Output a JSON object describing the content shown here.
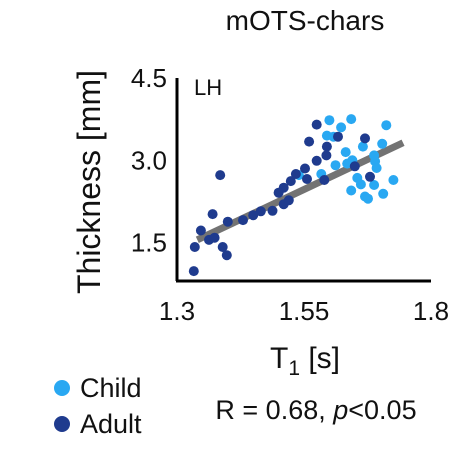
{
  "chart_data": {
    "type": "scatter",
    "title": "mOTS-chars",
    "panel_label": "LH",
    "xlabel": "T",
    "xlabel_sub": "1",
    "xlabel_unit": " [s]",
    "ylabel": "Thickness [mm]",
    "xlim": [
      1.3,
      1.8
    ],
    "ylim": [
      0.8,
      4.5
    ],
    "x_ticks": [
      1.3,
      1.55,
      1.8
    ],
    "x_tick_labels": [
      "1.3",
      "1.55",
      "1.8"
    ],
    "y_ticks": [
      1.5,
      3.0,
      4.5
    ],
    "y_tick_labels": [
      "1.5",
      "3.0",
      "4.5"
    ],
    "grid": false,
    "legend_position": "bottom-left",
    "series": [
      {
        "name": "Child",
        "color": "#29a8f2",
        "points": [
          [
            1.6,
            3.73
          ],
          [
            1.623,
            3.6
          ],
          [
            1.643,
            3.75
          ],
          [
            1.712,
            3.64
          ],
          [
            1.595,
            3.45
          ],
          [
            1.608,
            3.43
          ],
          [
            1.632,
            3.15
          ],
          [
            1.666,
            3.25
          ],
          [
            1.688,
            3.09
          ],
          [
            1.704,
            3.3
          ],
          [
            1.54,
            2.73
          ],
          [
            1.584,
            2.75
          ],
          [
            1.612,
            2.91
          ],
          [
            1.635,
            2.94
          ],
          [
            1.645,
            3.0
          ],
          [
            1.69,
            2.98
          ],
          [
            1.693,
            2.86
          ],
          [
            1.655,
            2.68
          ],
          [
            1.662,
            2.56
          ],
          [
            1.726,
            2.64
          ],
          [
            1.643,
            2.45
          ],
          [
            1.67,
            2.34
          ],
          [
            1.676,
            2.3
          ],
          [
            1.706,
            2.39
          ],
          [
            1.688,
            2.55
          ]
        ]
      },
      {
        "name": "Adult",
        "color": "#1f3b8e",
        "points": [
          [
            1.575,
            3.65
          ],
          [
            1.56,
            3.34
          ],
          [
            1.595,
            3.25
          ],
          [
            1.617,
            3.43
          ],
          [
            1.67,
            3.4
          ],
          [
            1.594,
            3.09
          ],
          [
            1.575,
            2.99
          ],
          [
            1.552,
            2.85
          ],
          [
            1.534,
            2.75
          ],
          [
            1.556,
            2.66
          ],
          [
            1.59,
            2.64
          ],
          [
            1.65,
            2.89
          ],
          [
            1.68,
            2.7
          ],
          [
            1.524,
            2.62
          ],
          [
            1.51,
            2.5
          ],
          [
            1.5,
            2.41
          ],
          [
            1.51,
            2.2
          ],
          [
            1.385,
            2.73
          ],
          [
            1.52,
            2.27
          ],
          [
            1.488,
            2.08
          ],
          [
            1.465,
            2.07
          ],
          [
            1.45,
            2.0
          ],
          [
            1.43,
            1.91
          ],
          [
            1.4,
            1.88
          ],
          [
            1.37,
            2.02
          ],
          [
            1.347,
            1.72
          ],
          [
            1.363,
            1.55
          ],
          [
            1.39,
            1.42
          ],
          [
            1.374,
            1.59
          ],
          [
            1.398,
            1.27
          ],
          [
            1.335,
            1.42
          ],
          [
            1.333,
            0.98
          ]
        ]
      }
    ],
    "fit_line": {
      "color": "#737373",
      "points": [
        [
          1.34,
          1.55
        ],
        [
          1.745,
          3.32
        ]
      ]
    },
    "stat_text": {
      "prefix": "R = 0.68, ",
      "p_symbol": "p",
      "suffix": "<0.05"
    }
  }
}
